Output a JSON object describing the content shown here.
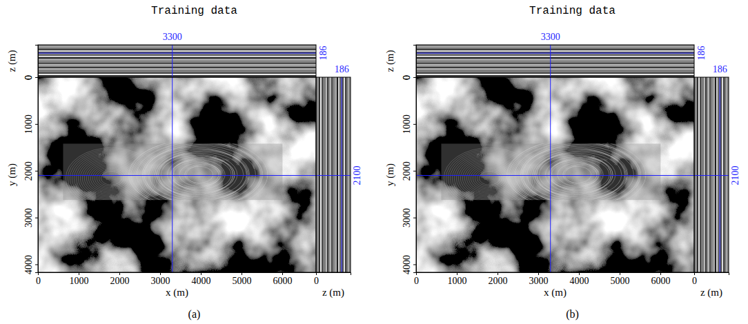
{
  "chart_data": [
    {
      "type": "image",
      "title": "Training data",
      "panel_label": "(a)",
      "xlabel": "x (m)",
      "ylabel": "y (m)",
      "zlabel": "z (m)",
      "xlim": [
        0,
        6830
      ],
      "ylim": [
        0,
        4170
      ],
      "zlim": [
        0,
        250
      ],
      "xticks": [
        0,
        1000,
        2000,
        3000,
        4000,
        5000,
        6000
      ],
      "yticks": [
        0,
        1000,
        2000,
        3000,
        4000
      ],
      "zticks": [
        0
      ],
      "crosshair": {
        "x": 3300,
        "y": 2100,
        "z": 186
      },
      "color": "#1f1fff"
    },
    {
      "type": "image",
      "title": "Training data",
      "panel_label": "(b)",
      "xlabel": "x (m)",
      "ylabel": "y (m)",
      "zlabel": "z (m)",
      "xlim": [
        0,
        6830
      ],
      "ylim": [
        0,
        4170
      ],
      "zlim": [
        0,
        250
      ],
      "xticks": [
        0,
        1000,
        2000,
        3000,
        4000,
        5000,
        6000
      ],
      "yticks": [
        0,
        1000,
        2000,
        3000,
        4000
      ],
      "zticks": [
        0
      ],
      "crosshair": {
        "x": 3300,
        "y": 2100,
        "z": 186
      },
      "color": "#1f1fff"
    }
  ]
}
